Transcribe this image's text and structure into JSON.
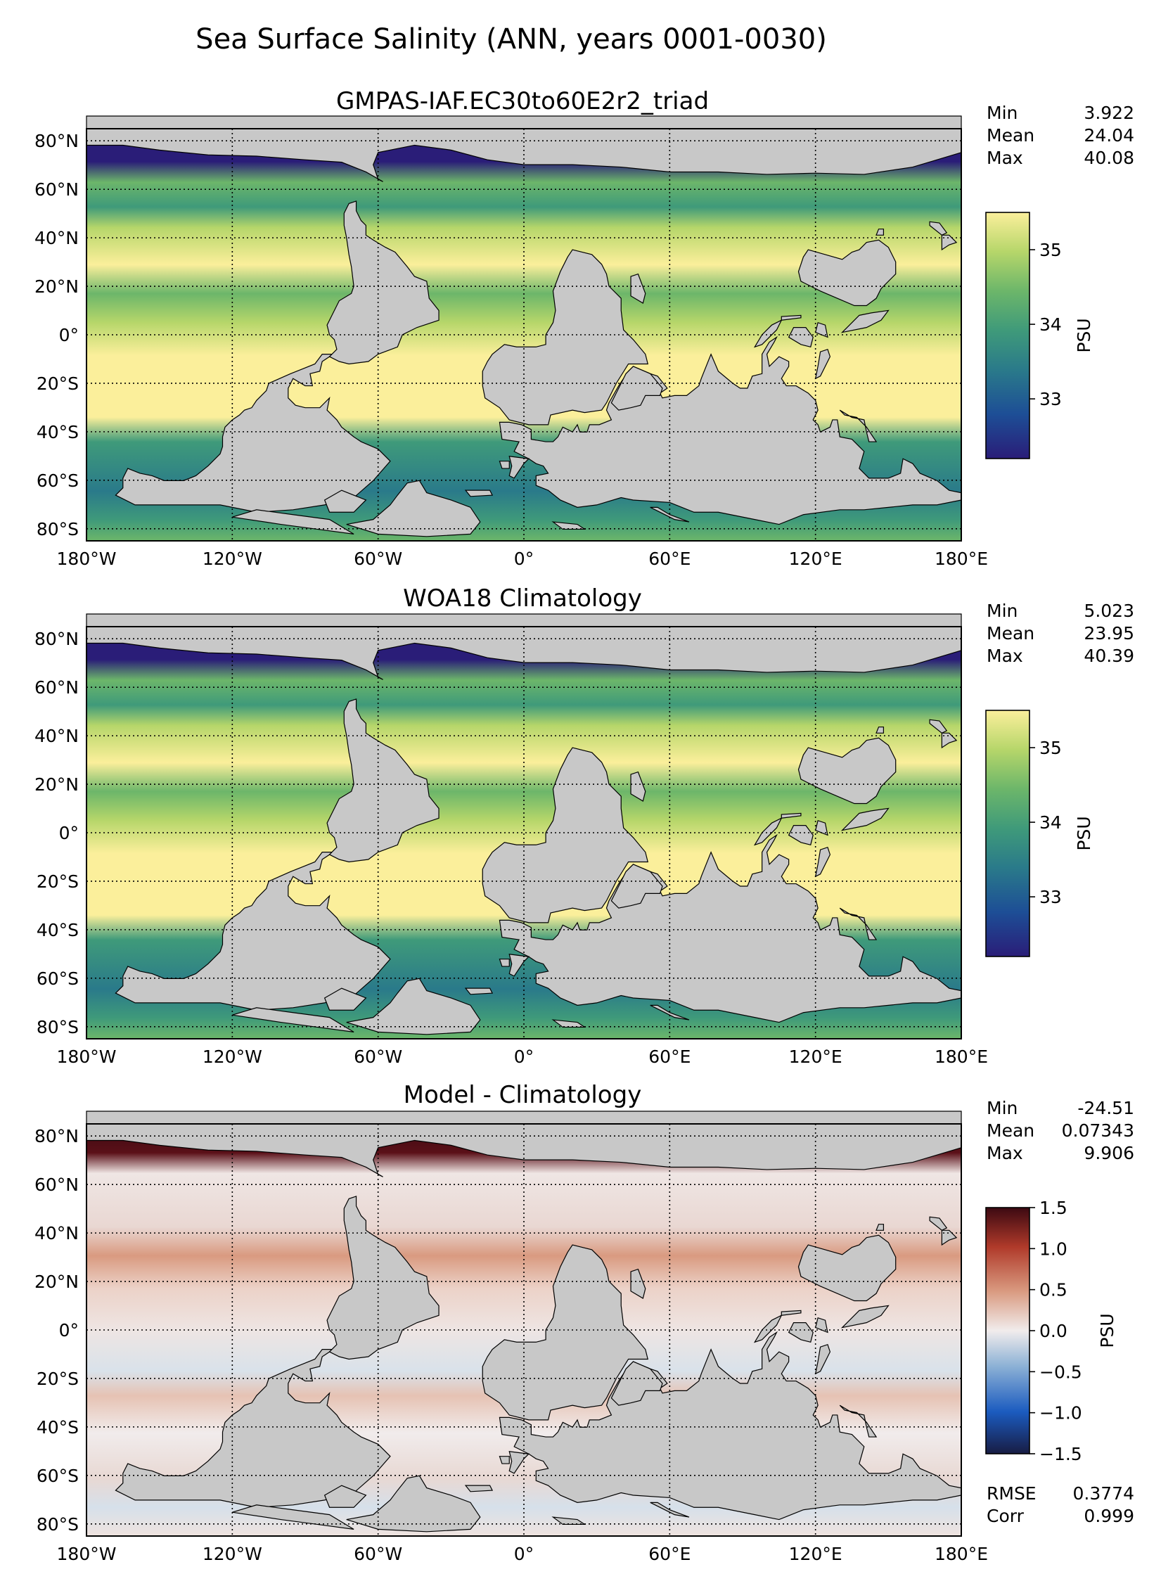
{
  "figure": {
    "title": "Sea Surface Salinity (ANN, years 0001-0030)"
  },
  "axes": {
    "lon_ticks": [
      "180°W",
      "120°W",
      "60°W",
      "0°",
      "60°E",
      "120°E",
      "180°E"
    ],
    "lat_ticks": [
      "80°N",
      "60°N",
      "40°N",
      "20°N",
      "0°",
      "20°S",
      "40°S",
      "60°S",
      "80°S"
    ]
  },
  "panels": [
    {
      "title": "GMPAS-IAF.EC30to60E2r2_triad",
      "stats": [
        {
          "label": "Min",
          "value": "3.922"
        },
        {
          "label": "Mean",
          "value": "24.04"
        },
        {
          "label": "Max",
          "value": "40.08"
        }
      ],
      "colorbar": {
        "label": "PSU",
        "colormap": "haline",
        "ticks": [
          "33",
          "34",
          "35"
        ],
        "tick_values": [
          33,
          34,
          35
        ],
        "range": [
          32.2,
          35.5
        ]
      }
    },
    {
      "title": "WOA18 Climatology",
      "stats": [
        {
          "label": "Min",
          "value": "5.023"
        },
        {
          "label": "Mean",
          "value": "23.95"
        },
        {
          "label": "Max",
          "value": "40.39"
        }
      ],
      "colorbar": {
        "label": "PSU",
        "colormap": "haline",
        "ticks": [
          "33",
          "34",
          "35"
        ],
        "tick_values": [
          33,
          34,
          35
        ],
        "range": [
          32.2,
          35.5
        ]
      }
    },
    {
      "title": "Model - Climatology",
      "stats": [
        {
          "label": "Min",
          "value": "-24.51"
        },
        {
          "label": "Mean",
          "value": "0.07343"
        },
        {
          "label": "Max",
          "value": "9.906"
        }
      ],
      "colorbar": {
        "label": "PSU",
        "colormap": "balance",
        "ticks": [
          "−1.5",
          "−1.0",
          "−0.5",
          "0.0",
          "0.5",
          "1.0",
          "1.5"
        ],
        "tick_values": [
          -1.5,
          -1.0,
          -0.5,
          0.0,
          0.5,
          1.0,
          1.5
        ],
        "range": [
          -1.5,
          1.5
        ]
      },
      "extra_stats": [
        {
          "label": "RMSE",
          "value": "0.3774"
        },
        {
          "label": "Corr",
          "value": "0.999"
        }
      ]
    }
  ],
  "colors": {
    "land": "#c8c8c8",
    "haline": [
      "#2a1d78",
      "#1d4e96",
      "#2a7a8a",
      "#3f9a7a",
      "#6cb66a",
      "#b6d66a",
      "#fbef9b"
    ],
    "balance": [
      "#181c43",
      "#1b5bbf",
      "#8fb3d6",
      "#f1ecec",
      "#d99a80",
      "#b03a2a",
      "#3c0912"
    ]
  }
}
